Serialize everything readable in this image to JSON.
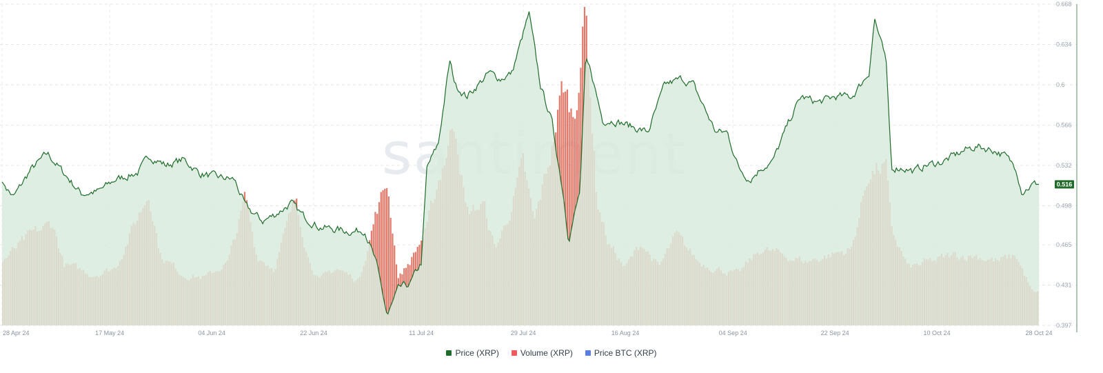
{
  "chart_data": {
    "type": "line",
    "watermark": "santiment",
    "y_axis": {
      "position": "right",
      "range": [
        0.397,
        0.668
      ],
      "ticks": [
        "0.397",
        "0.431",
        "0.465",
        "0.498",
        "0.532",
        "0.566",
        "0.6",
        "0.634",
        "0.668"
      ]
    },
    "x_axis": {
      "ticks": [
        "28 Apr 24",
        "17 May 24",
        "04 Jun 24",
        "22 Jun 24",
        "11 Jul 24",
        "29 Jul 24",
        "16 Aug 24",
        "04 Sep 24",
        "22 Sep 24",
        "10 Oct 24",
        "28 Oct 24"
      ]
    },
    "last_price_label": "0.516",
    "grid": true,
    "legend_position": "bottom-center",
    "series": [
      {
        "name": "Price (XRP)",
        "color": "#1e6b2a",
        "fill": "#d9ebdd",
        "key_points": [
          [
            "28 Apr 24",
            0.518
          ],
          [
            "30 Apr 24",
            0.505
          ],
          [
            "03 May 24",
            0.528
          ],
          [
            "06 May 24",
            0.542
          ],
          [
            "09 May 24",
            0.525
          ],
          [
            "12 May 24",
            0.508
          ],
          [
            "15 May 24",
            0.51
          ],
          [
            "18 May 24",
            0.52
          ],
          [
            "22 May 24",
            0.526
          ],
          [
            "24 May 24",
            0.54
          ],
          [
            "27 May 24",
            0.532
          ],
          [
            "30 May 24",
            0.537
          ],
          [
            "02 Jun 24",
            0.525
          ],
          [
            "05 Jun 24",
            0.522
          ],
          [
            "08 Jun 24",
            0.52
          ],
          [
            "10 Jun 24",
            0.497
          ],
          [
            "13 Jun 24",
            0.485
          ],
          [
            "15 Jun 24",
            0.49
          ],
          [
            "18 Jun 24",
            0.5
          ],
          [
            "20 Jun 24",
            0.49
          ],
          [
            "23 Jun 24",
            0.48
          ],
          [
            "26 Jun 24",
            0.478
          ],
          [
            "29 Jun 24",
            0.476
          ],
          [
            "01 Jul 24",
            0.478
          ],
          [
            "03 Jul 24",
            0.45
          ],
          [
            "05 Jul 24",
            0.405
          ],
          [
            "07 Jul 24",
            0.428
          ],
          [
            "09 Jul 24",
            0.432
          ],
          [
            "11 Jul 24",
            0.45
          ],
          [
            "12 Jul 24",
            0.53
          ],
          [
            "14 Jul 24",
            0.55
          ],
          [
            "16 Jul 24",
            0.62
          ],
          [
            "17 Jul 24",
            0.6
          ],
          [
            "19 Jul 24",
            0.59
          ],
          [
            "21 Jul 24",
            0.6
          ],
          [
            "23 Jul 24",
            0.61
          ],
          [
            "25 Jul 24",
            0.605
          ],
          [
            "27 Jul 24",
            0.61
          ],
          [
            "30 Jul 24",
            0.66
          ],
          [
            "01 Aug 24",
            0.6
          ],
          [
            "03 Aug 24",
            0.57
          ],
          [
            "05 Aug 24",
            0.51
          ],
          [
            "06 Aug 24",
            0.47
          ],
          [
            "08 Aug 24",
            0.51
          ],
          [
            "09 Aug 24",
            0.62
          ],
          [
            "10 Aug 24",
            0.61
          ],
          [
            "12 Aug 24",
            0.57
          ],
          [
            "14 Aug 24",
            0.57
          ],
          [
            "17 Aug 24",
            0.565
          ],
          [
            "20 Aug 24",
            0.56
          ],
          [
            "23 Aug 24",
            0.6
          ],
          [
            "26 Aug 24",
            0.605
          ],
          [
            "28 Aug 24",
            0.6
          ],
          [
            "30 Aug 24",
            0.58
          ],
          [
            "01 Sep 24",
            0.56
          ],
          [
            "03 Sep 24",
            0.56
          ],
          [
            "05 Sep 24",
            0.53
          ],
          [
            "07 Sep 24",
            0.52
          ],
          [
            "09 Sep 24",
            0.53
          ],
          [
            "11 Sep 24",
            0.535
          ],
          [
            "14 Sep 24",
            0.57
          ],
          [
            "16 Sep 24",
            0.59
          ],
          [
            "19 Sep 24",
            0.585
          ],
          [
            "22 Sep 24",
            0.59
          ],
          [
            "25 Sep 24",
            0.59
          ],
          [
            "28 Sep 24",
            0.61
          ],
          [
            "29 Sep 24",
            0.656
          ],
          [
            "01 Oct 24",
            0.62
          ],
          [
            "02 Oct 24",
            0.53
          ],
          [
            "04 Oct 24",
            0.53
          ],
          [
            "06 Oct 24",
            0.527
          ],
          [
            "08 Oct 24",
            0.532
          ],
          [
            "11 Oct 24",
            0.535
          ],
          [
            "13 Oct 24",
            0.54
          ],
          [
            "15 Oct 24",
            0.545
          ],
          [
            "17 Oct 24",
            0.548
          ],
          [
            "20 Oct 24",
            0.545
          ],
          [
            "22 Oct 24",
            0.54
          ],
          [
            "24 Oct 24",
            0.53
          ],
          [
            "25 Oct 24",
            0.51
          ],
          [
            "27 Oct 24",
            0.516
          ],
          [
            "28 Oct 24",
            0.516
          ]
        ]
      },
      {
        "name": "Volume (XRP)",
        "color": "#f05a5a",
        "bar_fill": "#e07a6a",
        "relative_volume_key_points": [
          [
            "28 Apr 24",
            0.2
          ],
          [
            "03 May 24",
            0.28
          ],
          [
            "07 May 24",
            0.32
          ],
          [
            "09 May 24",
            0.19
          ],
          [
            "14 May 24",
            0.16
          ],
          [
            "18 May 24",
            0.18
          ],
          [
            "24 May 24",
            0.42
          ],
          [
            "26 May 24",
            0.22
          ],
          [
            "30 May 24",
            0.16
          ],
          [
            "03 Jun 24",
            0.15
          ],
          [
            "07 Jun 24",
            0.2
          ],
          [
            "10 Jun 24",
            0.4
          ],
          [
            "12 Jun 24",
            0.22
          ],
          [
            "15 Jun 24",
            0.18
          ],
          [
            "19 Jun 24",
            0.4
          ],
          [
            "21 Jun 24",
            0.22
          ],
          [
            "23 Jun 24",
            0.14
          ],
          [
            "26 Jun 24",
            0.18
          ],
          [
            "30 Jun 24",
            0.14
          ],
          [
            "03 Jul 24",
            0.35
          ],
          [
            "05 Jul 24",
            0.45
          ],
          [
            "07 Jul 24",
            0.15
          ],
          [
            "09 Jul 24",
            0.2
          ],
          [
            "12 Jul 24",
            0.3
          ],
          [
            "14 Jul 24",
            0.45
          ],
          [
            "17 Jul 24",
            0.65
          ],
          [
            "19 Jul 24",
            0.35
          ],
          [
            "22 Jul 24",
            0.38
          ],
          [
            "24 Jul 24",
            0.24
          ],
          [
            "26 Jul 24",
            0.32
          ],
          [
            "29 Jul 24",
            0.5
          ],
          [
            "31 Jul 24",
            0.32
          ],
          [
            "03 Aug 24",
            0.55
          ],
          [
            "05 Aug 24",
            0.75
          ],
          [
            "07 Aug 24",
            0.65
          ],
          [
            "09 Aug 24",
            1.0
          ],
          [
            "11 Aug 24",
            0.4
          ],
          [
            "13 Aug 24",
            0.26
          ],
          [
            "16 Aug 24",
            0.18
          ],
          [
            "19 Aug 24",
            0.26
          ],
          [
            "22 Aug 24",
            0.18
          ],
          [
            "25 Aug 24",
            0.28
          ],
          [
            "29 Aug 24",
            0.2
          ],
          [
            "01 Sep 24",
            0.18
          ],
          [
            "05 Sep 24",
            0.16
          ],
          [
            "09 Sep 24",
            0.24
          ],
          [
            "13 Sep 24",
            0.22
          ],
          [
            "17 Sep 24",
            0.2
          ],
          [
            "21 Sep 24",
            0.22
          ],
          [
            "25 Sep 24",
            0.24
          ],
          [
            "28 Sep 24",
            0.48
          ],
          [
            "01 Oct 24",
            0.5
          ],
          [
            "02 Oct 24",
            0.3
          ],
          [
            "05 Oct 24",
            0.18
          ],
          [
            "09 Oct 24",
            0.2
          ],
          [
            "13 Oct 24",
            0.22
          ],
          [
            "17 Oct 24",
            0.22
          ],
          [
            "21 Oct 24",
            0.2
          ],
          [
            "24 Oct 24",
            0.22
          ],
          [
            "27 Oct 24",
            0.1
          ],
          [
            "28 Oct 24",
            0.1
          ]
        ]
      },
      {
        "name": "Price BTC (XRP)",
        "color": "#5b7fe0"
      }
    ]
  }
}
